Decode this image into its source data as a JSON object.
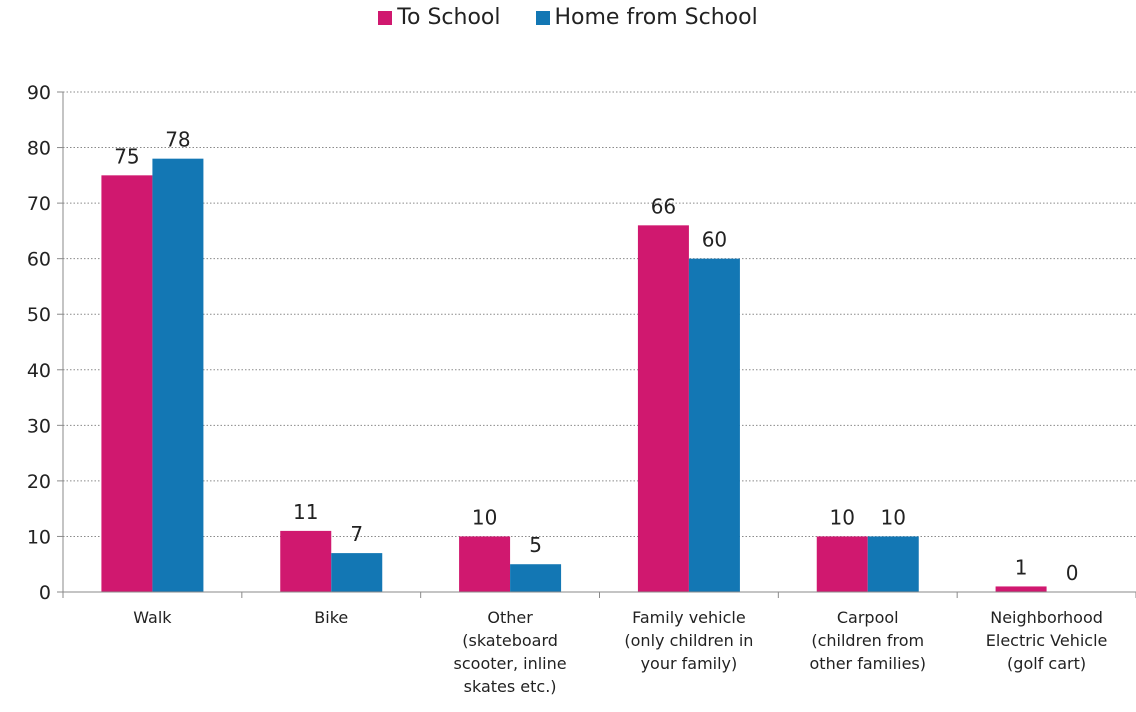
{
  "chart_data": {
    "type": "bar",
    "categories": [
      [
        "Walk"
      ],
      [
        "Bike"
      ],
      [
        "Other",
        "(skateboard",
        "scooter, inline",
        "skates etc.)"
      ],
      [
        "Family vehicle",
        "(only children in",
        "your family)"
      ],
      [
        "Carpool",
        "(children from",
        "other families)"
      ],
      [
        "Neighborhood",
        "Electric Vehicle",
        "(golf cart)"
      ]
    ],
    "series": [
      {
        "name": "To School",
        "color": "#D0186F",
        "values": [
          75,
          11,
          10,
          66,
          10,
          1
        ]
      },
      {
        "name": "Home from School",
        "color": "#1377B4",
        "values": [
          78,
          7,
          5,
          60,
          10,
          0
        ]
      }
    ],
    "ylim": [
      0,
      90
    ],
    "yticks": [
      0,
      10,
      20,
      30,
      40,
      50,
      60,
      70,
      80,
      90
    ],
    "grid": "horizontal-dotted",
    "legend_position": "top-center",
    "data_labels": true
  }
}
